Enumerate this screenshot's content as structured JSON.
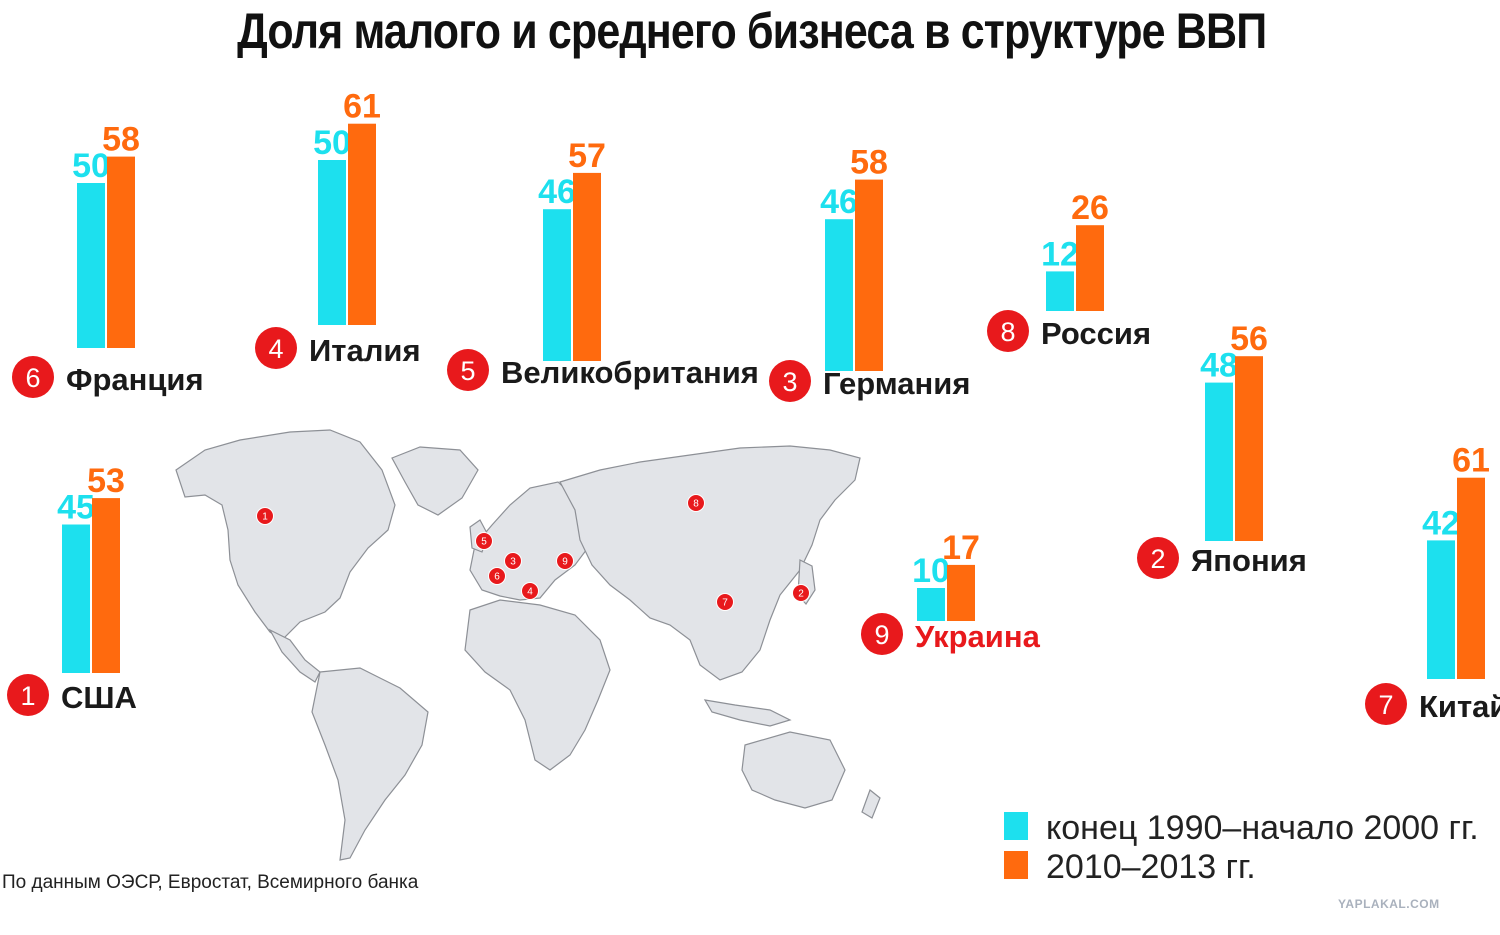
{
  "title": "Доля малого и среднего бизнеса в структуре ВВП",
  "source": "По данным ОЭСР, Евростат, Всемирного банка",
  "watermark": "YAPLAKAL.COM",
  "legend": [
    {
      "label": "конец 1990–начало 2000 гг.",
      "color": "#1de0ee"
    },
    {
      "label": "2010–2013 гг.",
      "color": "#ff6a0e"
    }
  ],
  "colors": {
    "early": "#1de0ee",
    "late": "#ff6a0e",
    "badge": "#e8191c",
    "highlight": "#e8191c",
    "map": "#e2e4e8"
  },
  "chart_data": {
    "type": "bar",
    "series": [
      {
        "name": "конец 1990–начало 2000 гг.",
        "values": [
          45,
          50,
          50,
          46,
          46,
          12,
          10,
          48,
          42
        ]
      },
      {
        "name": "2010–2013 гг.",
        "values": [
          53,
          58,
          61,
          57,
          58,
          26,
          17,
          56,
          61
        ]
      }
    ],
    "categories": [
      "США",
      "Франция",
      "Италия",
      "Великобритания",
      "Германия",
      "Россия",
      "Украина",
      "Япония",
      "Китай"
    ],
    "ranks": [
      1,
      6,
      4,
      5,
      3,
      8,
      9,
      2,
      7
    ],
    "highlighted": [
      "Украина"
    ]
  },
  "map_markers": [
    "1",
    "5",
    "3",
    "9",
    "6",
    "4",
    "8",
    "7",
    "2"
  ]
}
